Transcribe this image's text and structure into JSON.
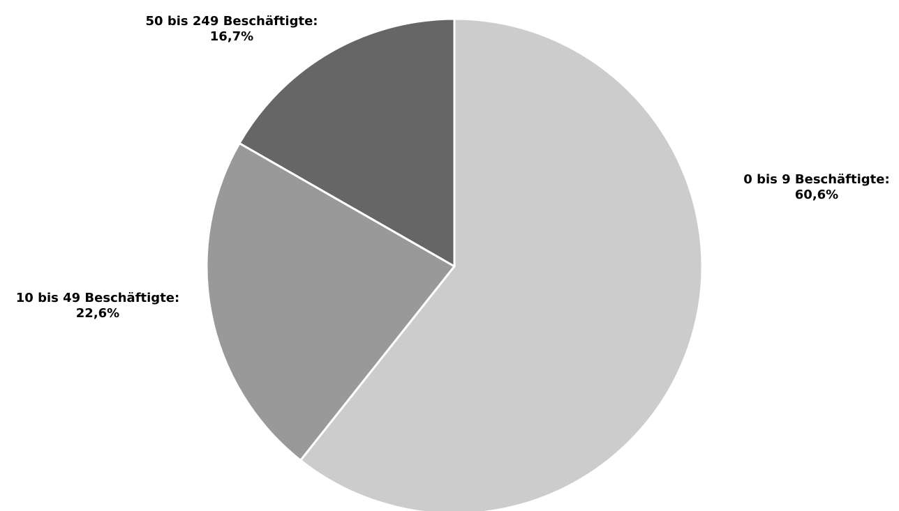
{
  "chart_data": {
    "type": "pie",
    "title": "",
    "start_angle_deg": 0,
    "direction": "clockwise",
    "slices": [
      {
        "label": "0 bis 9 Beschäftigte:",
        "value": 60.6,
        "value_label": "60,6%",
        "color": "#cccccc"
      },
      {
        "label": "10 bis 49 Beschäftigte:",
        "value": 22.6,
        "value_label": "22,6%",
        "color": "#999999"
      },
      {
        "label": "50 bis 249 Beschäftigte:",
        "value": 16.7,
        "value_label": "16,7%",
        "color": "#666666"
      }
    ]
  }
}
